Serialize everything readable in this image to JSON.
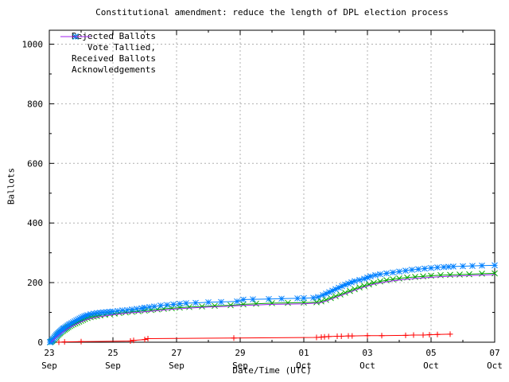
{
  "window": {
    "background": "#ffffff",
    "text_color": "#000000"
  },
  "chart_data": {
    "type": "line",
    "title": "Constitutional amendment: reduce the length of DPL election process",
    "xlabel": "Date/Time (UTC)",
    "ylabel": "Ballots",
    "grid": true,
    "grid_color": "#b0b0b0",
    "legend_position": "top-left",
    "xlim_days": [
      0,
      14
    ],
    "ylim": [
      0,
      1048
    ],
    "y_ticks": [
      0,
      200,
      400,
      600,
      800,
      1000
    ],
    "y_minor_ticks": [
      100,
      300,
      500,
      700,
      900
    ],
    "x_minor_days": [
      1,
      3,
      5,
      7,
      9,
      11,
      13
    ],
    "x_ticks": [
      {
        "day": 0,
        "line1": "23",
        "line2": "Sep"
      },
      {
        "day": 2,
        "line1": "25",
        "line2": "Sep"
      },
      {
        "day": 4,
        "line1": "27",
        "line2": "Sep"
      },
      {
        "day": 6,
        "line1": "29",
        "line2": "Sep"
      },
      {
        "day": 8,
        "line1": "01",
        "line2": "Oct"
      },
      {
        "day": 10,
        "line1": "03",
        "line2": "Oct"
      },
      {
        "day": 12,
        "line1": "05",
        "line2": "Oct"
      },
      {
        "day": 14,
        "line1": "07",
        "line2": "Oct"
      }
    ],
    "series": [
      {
        "name": "Rejected Ballots",
        "color": "#ff0000",
        "marker": "plus",
        "points": [
          [
            0.3,
            0
          ],
          [
            0.48,
            1
          ],
          [
            1.0,
            2
          ],
          [
            2.55,
            4
          ],
          [
            2.65,
            6
          ],
          [
            3.0,
            9
          ],
          [
            3.1,
            12
          ],
          [
            5.8,
            14
          ],
          [
            8.4,
            16
          ],
          [
            8.55,
            17
          ],
          [
            8.65,
            18
          ],
          [
            8.78,
            19
          ],
          [
            9.05,
            20
          ],
          [
            9.18,
            20
          ],
          [
            9.4,
            21
          ],
          [
            9.52,
            21
          ],
          [
            10.0,
            22
          ],
          [
            10.45,
            22
          ],
          [
            11.2,
            23
          ],
          [
            11.45,
            24
          ],
          [
            11.75,
            24
          ],
          [
            11.95,
            25
          ],
          [
            12.2,
            26
          ],
          [
            12.6,
            27
          ]
        ]
      },
      {
        "name": "Vote Tallied,",
        "color": "#00a800",
        "marker": "cross",
        "points": [
          [
            0.03,
            0
          ],
          [
            0.06,
            2
          ],
          [
            0.09,
            4
          ],
          [
            0.12,
            7
          ],
          [
            0.15,
            10
          ],
          [
            0.18,
            14
          ],
          [
            0.21,
            18
          ],
          [
            0.24,
            21
          ],
          [
            0.27,
            24
          ],
          [
            0.3,
            27
          ],
          [
            0.33,
            30
          ],
          [
            0.36,
            33
          ],
          [
            0.4,
            36
          ],
          [
            0.44,
            39
          ],
          [
            0.48,
            42
          ],
          [
            0.52,
            45
          ],
          [
            0.56,
            48
          ],
          [
            0.6,
            51
          ],
          [
            0.65,
            54
          ],
          [
            0.7,
            57
          ],
          [
            0.76,
            60
          ],
          [
            0.82,
            63
          ],
          [
            0.88,
            66
          ],
          [
            0.94,
            69
          ],
          [
            1.0,
            72
          ],
          [
            1.06,
            75
          ],
          [
            1.12,
            78
          ],
          [
            1.2,
            81
          ],
          [
            1.3,
            84
          ],
          [
            1.4,
            86
          ],
          [
            1.5,
            88
          ],
          [
            1.6,
            90
          ],
          [
            1.75,
            92
          ],
          [
            1.9,
            94
          ],
          [
            2.05,
            96
          ],
          [
            2.2,
            98
          ],
          [
            2.4,
            100
          ],
          [
            2.6,
            102
          ],
          [
            2.8,
            104
          ],
          [
            3.0,
            106
          ],
          [
            3.2,
            108
          ],
          [
            3.4,
            110
          ],
          [
            3.6,
            112
          ],
          [
            3.85,
            114
          ],
          [
            4.1,
            116
          ],
          [
            4.4,
            118
          ],
          [
            4.8,
            120
          ],
          [
            5.2,
            122
          ],
          [
            5.7,
            124
          ],
          [
            6.1,
            127
          ],
          [
            6.5,
            129
          ],
          [
            7.0,
            131
          ],
          [
            7.5,
            132
          ],
          [
            8.0,
            133
          ],
          [
            8.4,
            134
          ],
          [
            8.55,
            137
          ],
          [
            8.7,
            142
          ],
          [
            8.85,
            148
          ],
          [
            9.0,
            154
          ],
          [
            9.15,
            160
          ],
          [
            9.3,
            166
          ],
          [
            9.45,
            172
          ],
          [
            9.6,
            178
          ],
          [
            9.75,
            184
          ],
          [
            9.9,
            189
          ],
          [
            10.05,
            194
          ],
          [
            10.2,
            199
          ],
          [
            10.4,
            204
          ],
          [
            10.6,
            208
          ],
          [
            10.8,
            211
          ],
          [
            11.0,
            214
          ],
          [
            11.25,
            217
          ],
          [
            11.5,
            219
          ],
          [
            11.75,
            221
          ],
          [
            12.0,
            223
          ],
          [
            12.3,
            225
          ],
          [
            12.6,
            226
          ],
          [
            12.9,
            227
          ],
          [
            13.2,
            228
          ],
          [
            13.6,
            230
          ],
          [
            14.0,
            231
          ]
        ]
      },
      {
        "name": "Received Ballots",
        "color": "#0080ff",
        "marker": "asterisk",
        "points": [
          [
            0.02,
            0
          ],
          [
            0.05,
            2
          ],
          [
            0.08,
            5
          ],
          [
            0.1,
            8
          ],
          [
            0.13,
            12
          ],
          [
            0.16,
            16
          ],
          [
            0.19,
            20
          ],
          [
            0.22,
            24
          ],
          [
            0.25,
            27
          ],
          [
            0.28,
            30
          ],
          [
            0.31,
            33
          ],
          [
            0.34,
            36
          ],
          [
            0.37,
            39
          ],
          [
            0.4,
            42
          ],
          [
            0.43,
            45
          ],
          [
            0.46,
            47
          ],
          [
            0.5,
            50
          ],
          [
            0.54,
            53
          ],
          [
            0.58,
            56
          ],
          [
            0.62,
            59
          ],
          [
            0.66,
            61
          ],
          [
            0.7,
            64
          ],
          [
            0.75,
            67
          ],
          [
            0.8,
            70
          ],
          [
            0.85,
            73
          ],
          [
            0.9,
            76
          ],
          [
            0.95,
            79
          ],
          [
            1.0,
            82
          ],
          [
            1.05,
            85
          ],
          [
            1.1,
            87
          ],
          [
            1.15,
            89
          ],
          [
            1.2,
            91
          ],
          [
            1.3,
            94
          ],
          [
            1.4,
            96
          ],
          [
            1.5,
            98
          ],
          [
            1.6,
            99
          ],
          [
            1.7,
            100
          ],
          [
            1.8,
            101
          ],
          [
            1.9,
            102
          ],
          [
            2.0,
            103
          ],
          [
            2.15,
            105
          ],
          [
            2.3,
            107
          ],
          [
            2.45,
            108
          ],
          [
            2.6,
            110
          ],
          [
            2.75,
            112
          ],
          [
            2.9,
            114
          ],
          [
            3.0,
            116
          ],
          [
            3.15,
            118
          ],
          [
            3.3,
            120
          ],
          [
            3.5,
            123
          ],
          [
            3.7,
            125
          ],
          [
            3.9,
            127
          ],
          [
            4.1,
            129
          ],
          [
            4.3,
            131
          ],
          [
            4.6,
            132
          ],
          [
            5.0,
            134
          ],
          [
            5.4,
            135
          ],
          [
            5.9,
            137
          ],
          [
            6.1,
            143
          ],
          [
            6.4,
            144
          ],
          [
            6.9,
            145
          ],
          [
            7.3,
            146
          ],
          [
            7.8,
            147
          ],
          [
            8.0,
            148
          ],
          [
            8.3,
            149
          ],
          [
            8.45,
            152
          ],
          [
            8.6,
            158
          ],
          [
            8.7,
            163
          ],
          [
            8.8,
            168
          ],
          [
            8.9,
            173
          ],
          [
            9.0,
            178
          ],
          [
            9.1,
            183
          ],
          [
            9.2,
            188
          ],
          [
            9.3,
            193
          ],
          [
            9.4,
            197
          ],
          [
            9.5,
            201
          ],
          [
            9.6,
            205
          ],
          [
            9.75,
            209
          ],
          [
            9.9,
            213
          ],
          [
            10.0,
            217
          ],
          [
            10.1,
            221
          ],
          [
            10.25,
            225
          ],
          [
            10.4,
            228
          ],
          [
            10.6,
            231
          ],
          [
            10.8,
            234
          ],
          [
            11.0,
            237
          ],
          [
            11.2,
            240
          ],
          [
            11.4,
            243
          ],
          [
            11.6,
            245
          ],
          [
            11.8,
            247
          ],
          [
            12.0,
            249
          ],
          [
            12.2,
            251
          ],
          [
            12.4,
            252
          ],
          [
            12.55,
            253
          ],
          [
            12.7,
            254
          ],
          [
            13.0,
            255
          ],
          [
            13.3,
            256
          ],
          [
            13.6,
            257
          ],
          [
            14.0,
            258
          ]
        ]
      },
      {
        "name": "Acknowledgements",
        "color": "#a020f0",
        "marker": "none",
        "points": [
          [
            0.05,
            0
          ],
          [
            0.2,
            15
          ],
          [
            0.4,
            32
          ],
          [
            0.6,
            47
          ],
          [
            0.8,
            58
          ],
          [
            1.0,
            68
          ],
          [
            1.2,
            77
          ],
          [
            1.5,
            84
          ],
          [
            2.0,
            92
          ],
          [
            2.5,
            98
          ],
          [
            3.0,
            102
          ],
          [
            3.5,
            107
          ],
          [
            4.0,
            112
          ],
          [
            4.5,
            115
          ],
          [
            5.0,
            118
          ],
          [
            5.5,
            120
          ],
          [
            6.0,
            123
          ],
          [
            6.5,
            125
          ],
          [
            7.0,
            127
          ],
          [
            7.5,
            128
          ],
          [
            8.0,
            129
          ],
          [
            8.5,
            132
          ],
          [
            8.7,
            138
          ],
          [
            9.0,
            150
          ],
          [
            9.3,
            162
          ],
          [
            9.6,
            174
          ],
          [
            9.9,
            185
          ],
          [
            10.2,
            195
          ],
          [
            10.5,
            201
          ],
          [
            10.8,
            206
          ],
          [
            11.1,
            210
          ],
          [
            11.5,
            214
          ],
          [
            12.0,
            218
          ],
          [
            12.5,
            221
          ],
          [
            13.0,
            223
          ],
          [
            13.5,
            225
          ],
          [
            14.0,
            227
          ]
        ]
      }
    ]
  }
}
